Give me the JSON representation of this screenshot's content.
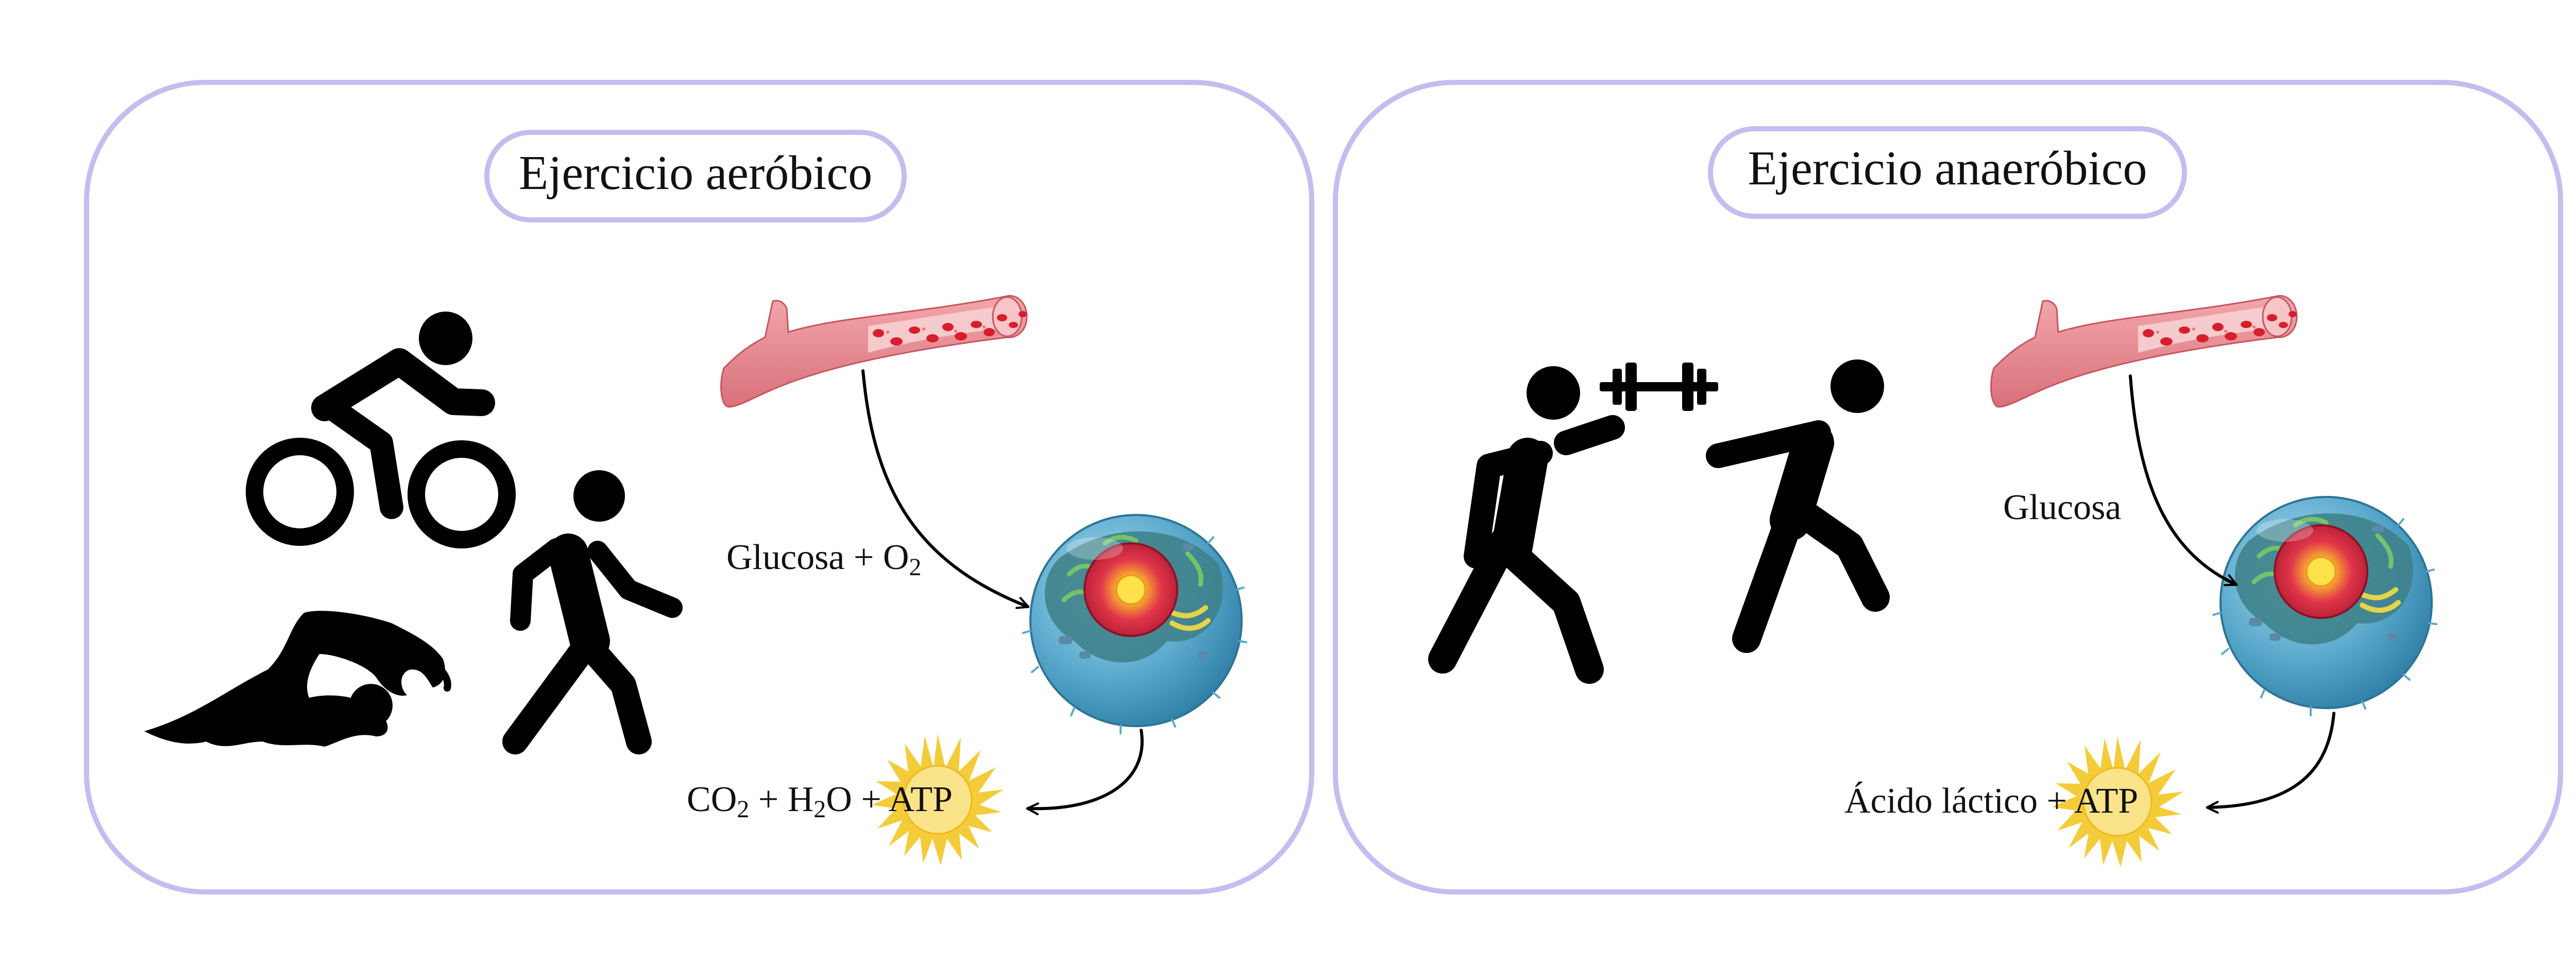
{
  "panels": {
    "aerobic": {
      "title": "Ejercicio aeróbico",
      "input_label": {
        "base": "Glucosa + O",
        "sub": "2"
      },
      "output_label": {
        "co2_base": "CO",
        "co2_sub": "2",
        "plus1": " + ",
        "h2o_h": "H",
        "h2o_sub": "2",
        "h2o_o": "O",
        "plus2": " + ",
        "atp": "ATP"
      }
    },
    "anaerobic": {
      "title": "Ejercicio anaeróbico",
      "input_label": "Glucosa",
      "output_label": {
        "acid": "Ácido láctico",
        "plus": " + ",
        "atp": "ATP"
      }
    }
  },
  "icons": {
    "aerobic": [
      "cyclist-icon",
      "walker-icon",
      "swimmer-icon",
      "blood-vessel-icon",
      "cell-icon",
      "sun-energy-icon"
    ],
    "anaerobic": [
      "weightlifter-icon",
      "runner-icon",
      "blood-vessel-icon",
      "cell-icon",
      "sun-energy-icon"
    ]
  },
  "colors": {
    "panel_border": "#c4bdf0",
    "vessel": "#e8868c",
    "vessel_dark": "#c75560",
    "blood_cell": "#d81e2c",
    "cell_membrane": "#5aa9cc",
    "nucleus": "#e0354a",
    "sun": "#f4cc3a",
    "icon": "#000000"
  }
}
